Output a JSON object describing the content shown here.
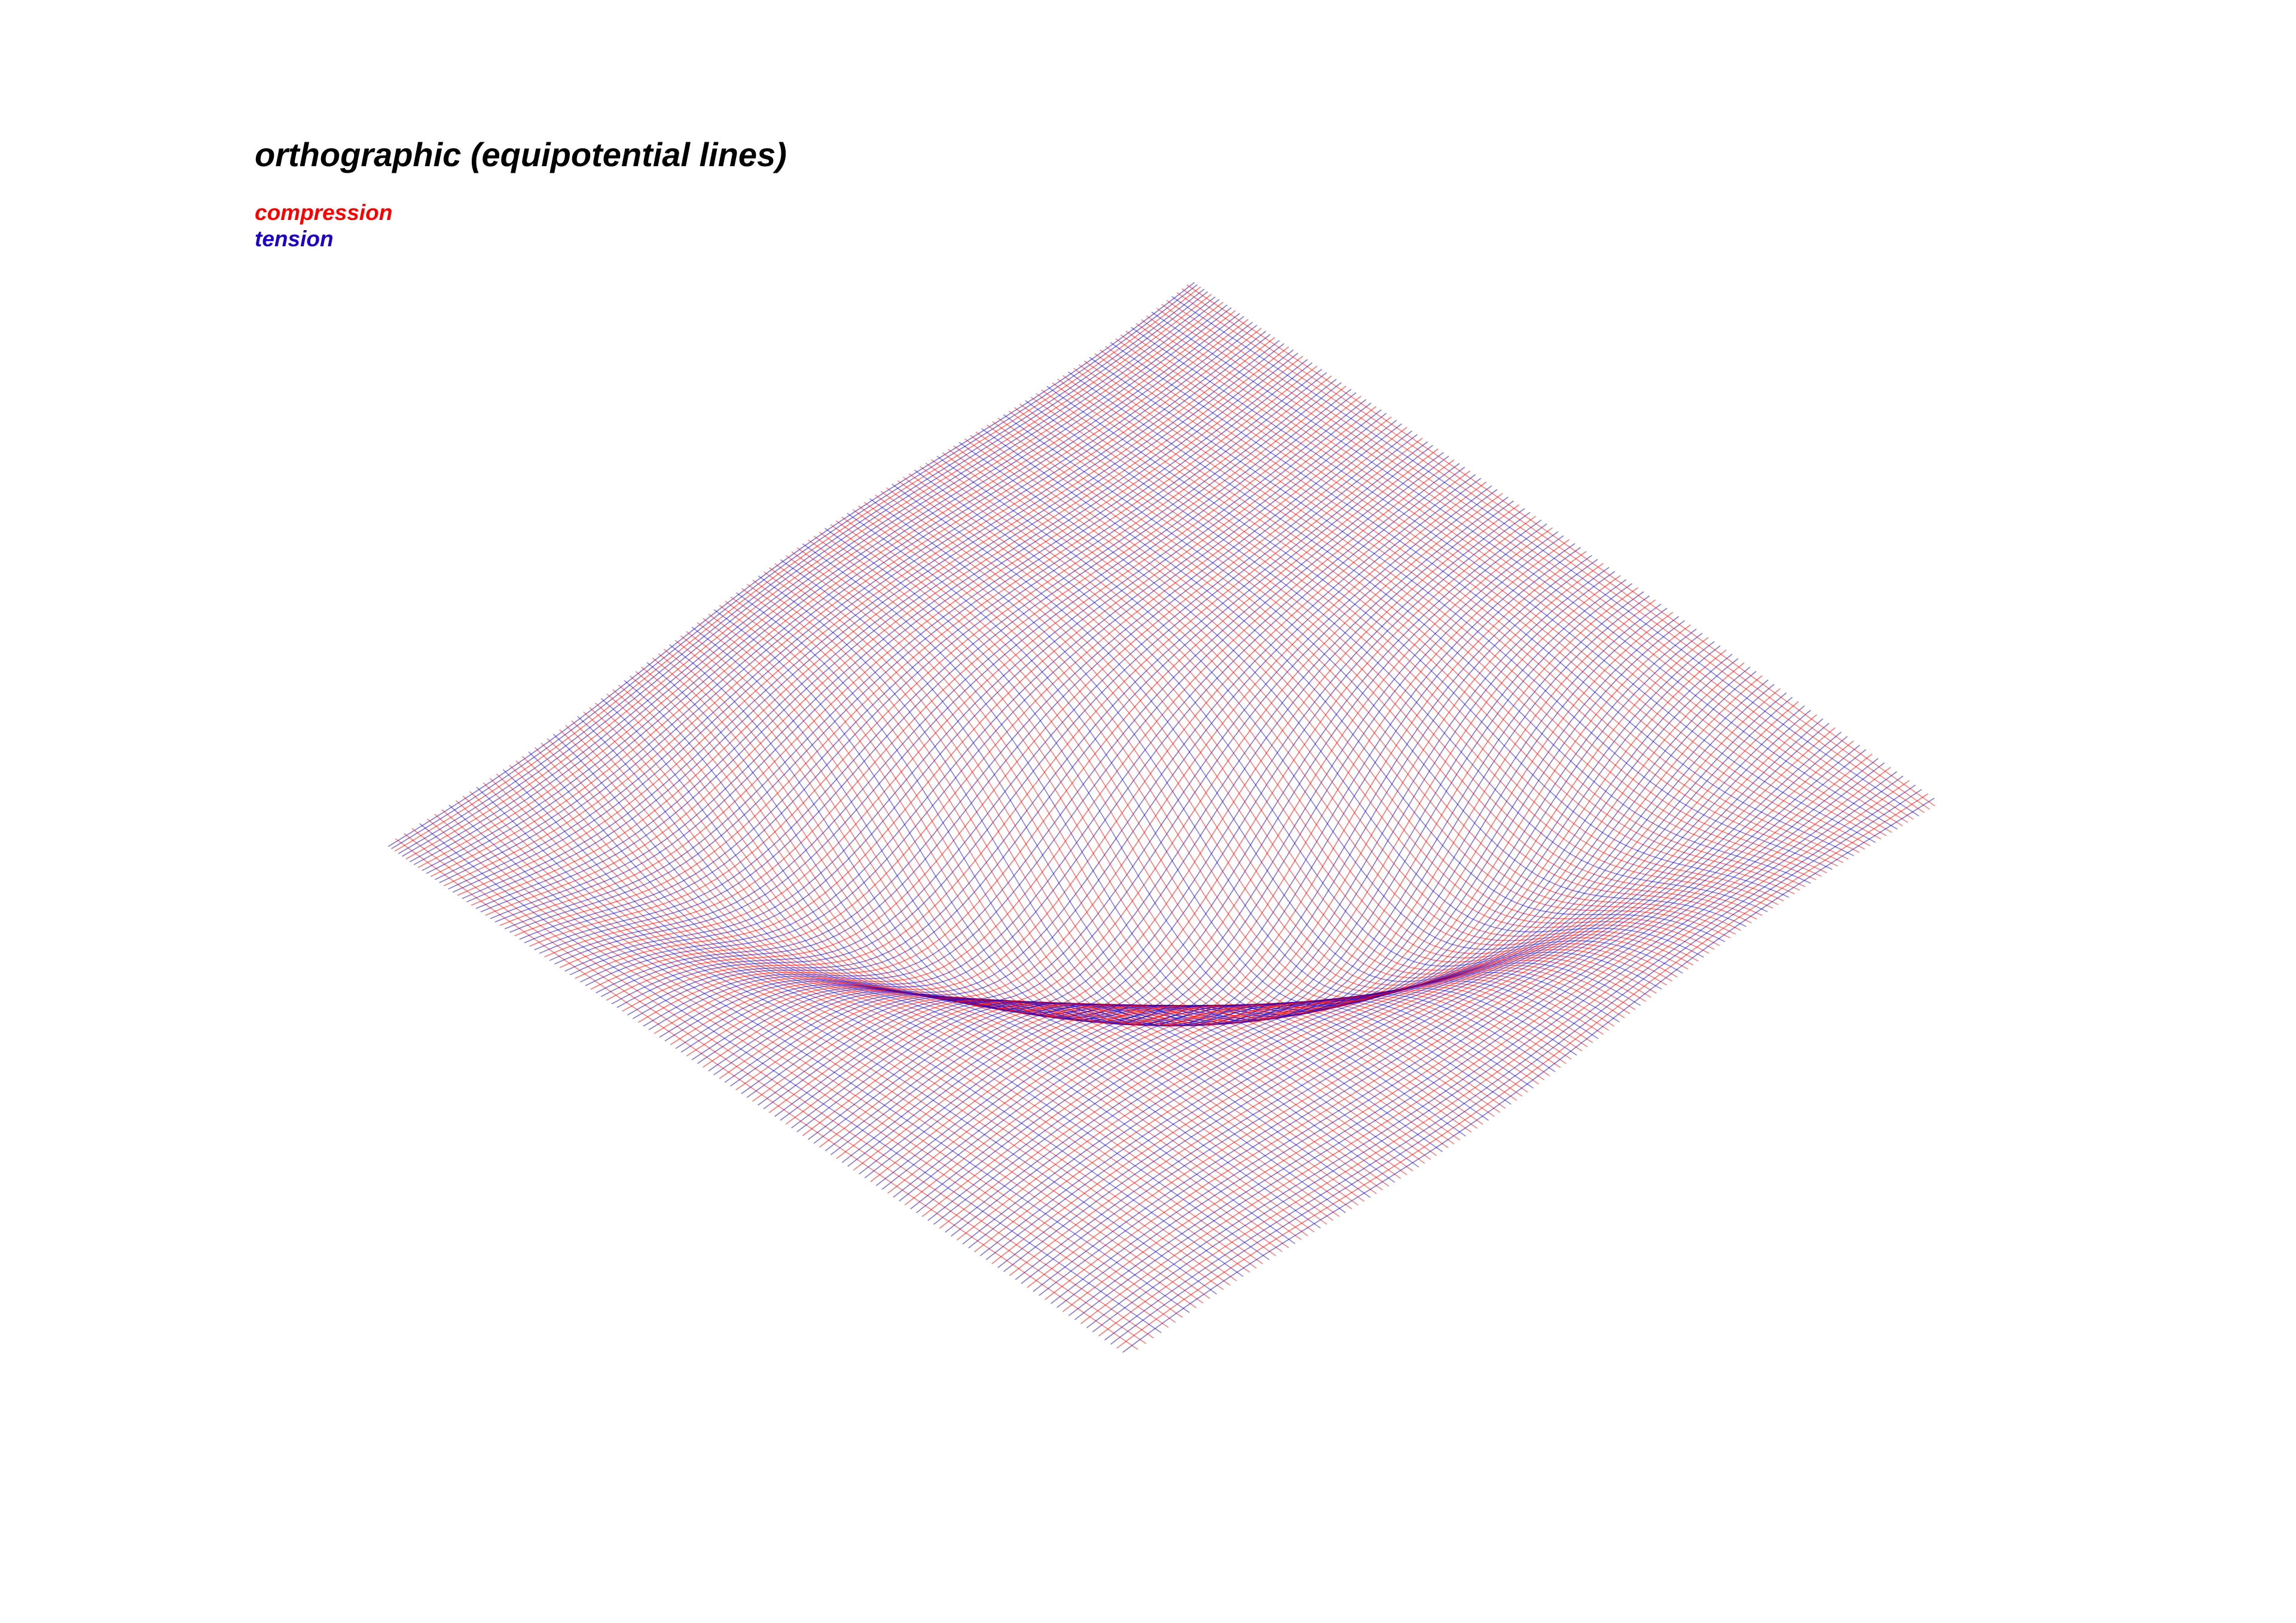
{
  "title": "orthographic (equipotential lines)",
  "legend": {
    "items": [
      {
        "label": "compression",
        "color": "#ff0000"
      },
      {
        "label": "tension",
        "color": "#1a00c8"
      }
    ]
  }
}
